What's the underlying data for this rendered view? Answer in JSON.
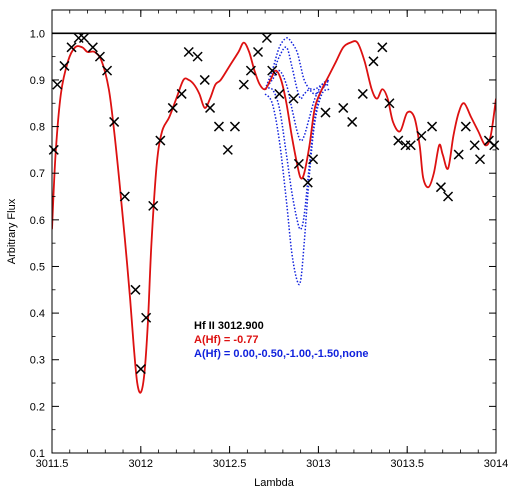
{
  "chart_data": {
    "type": "line",
    "xlabel": "Lambda",
    "ylabel": "Arbitrary Flux",
    "xlim": [
      3011.5,
      3014.0
    ],
    "ylim": [
      0.1,
      1.05
    ],
    "x_ticks": [
      3011.5,
      3012,
      3012.5,
      3013,
      3013.5,
      3014
    ],
    "x_tick_labels": [
      "3011.5",
      "3012",
      "3012.5",
      "3013",
      "3013.5",
      "3014"
    ],
    "y_ticks": [
      0.1,
      0.2,
      0.3,
      0.4,
      0.5,
      0.6,
      0.7,
      0.8,
      0.9,
      1.0
    ],
    "y_tick_labels": [
      "0.1",
      "0.2",
      "0.3",
      "0.4",
      "0.5",
      "0.6",
      "0.7",
      "0.8",
      "0.9",
      "1.0"
    ],
    "continuum_level": 1.0,
    "annotation": {
      "line1": "Hf II 3012.900",
      "line2": "A(Hf) = -0.77",
      "line3": "A(Hf) = 0.00,-0.50,-1.00,-1.50,none"
    },
    "observed": {
      "x": [
        3011.51,
        3011.53,
        3011.57,
        3011.61,
        3011.65,
        3011.68,
        3011.73,
        3011.77,
        3011.81,
        3011.85,
        3011.91,
        3011.97,
        3012.0,
        3012.03,
        3012.07,
        3012.11,
        3012.18,
        3012.23,
        3012.27,
        3012.32,
        3012.36,
        3012.39,
        3012.44,
        3012.49,
        3012.53,
        3012.58,
        3012.62,
        3012.66,
        3012.71,
        3012.74,
        3012.78,
        3012.86,
        3012.89,
        3012.94,
        3012.97,
        3013.04,
        3013.14,
        3013.19,
        3013.25,
        3013.31,
        3013.36,
        3013.4,
        3013.45,
        3013.49,
        3013.52,
        3013.58,
        3013.64,
        3013.69,
        3013.73,
        3013.79,
        3013.83,
        3013.88,
        3013.91,
        3013.96,
        3013.99
      ],
      "y": [
        0.75,
        0.89,
        0.93,
        0.97,
        0.99,
        0.99,
        0.97,
        0.95,
        0.92,
        0.81,
        0.65,
        0.45,
        0.28,
        0.39,
        0.63,
        0.77,
        0.84,
        0.87,
        0.96,
        0.95,
        0.9,
        0.84,
        0.8,
        0.75,
        0.8,
        0.89,
        0.92,
        0.96,
        0.99,
        0.92,
        0.87,
        0.86,
        0.72,
        0.68,
        0.73,
        0.83,
        0.84,
        0.81,
        0.87,
        0.94,
        0.97,
        0.85,
        0.77,
        0.76,
        0.76,
        0.78,
        0.8,
        0.67,
        0.65,
        0.74,
        0.8,
        0.76,
        0.73,
        0.77,
        0.76
      ]
    },
    "series": [
      {
        "name": "A(Hf) = -0.77",
        "color": "#dd1111",
        "style": "solid",
        "x": [
          3011.5,
          3011.52,
          3011.55,
          3011.59,
          3011.63,
          3011.67,
          3011.7,
          3011.74,
          3011.78,
          3011.82,
          3011.85,
          3011.88,
          3011.91,
          3011.94,
          3011.96,
          3011.98,
          3012.0,
          3012.02,
          3012.04,
          3012.06,
          3012.09,
          3012.12,
          3012.16,
          3012.2,
          3012.24,
          3012.27,
          3012.3,
          3012.33,
          3012.36,
          3012.39,
          3012.42,
          3012.45,
          3012.5,
          3012.55,
          3012.58,
          3012.61,
          3012.64,
          3012.67,
          3012.7,
          3012.73,
          3012.76,
          3012.79,
          3012.82,
          3012.85,
          3012.88,
          3012.9,
          3012.92,
          3012.95,
          3012.98,
          3013.02,
          3013.06,
          3013.1,
          3013.14,
          3013.18,
          3013.22,
          3013.26,
          3013.3,
          3013.33,
          3013.36,
          3013.39,
          3013.42,
          3013.46,
          3013.5,
          3013.54,
          3013.57,
          3013.59,
          3013.62,
          3013.65,
          3013.68,
          3013.7,
          3013.73,
          3013.76,
          3013.79,
          3013.82,
          3013.86,
          3013.9,
          3013.94,
          3013.97,
          3014.0
        ],
        "y": [
          0.58,
          0.74,
          0.87,
          0.94,
          0.97,
          0.97,
          0.96,
          0.96,
          0.94,
          0.88,
          0.79,
          0.68,
          0.56,
          0.43,
          0.33,
          0.25,
          0.23,
          0.27,
          0.38,
          0.55,
          0.72,
          0.79,
          0.82,
          0.86,
          0.9,
          0.9,
          0.89,
          0.87,
          0.84,
          0.86,
          0.89,
          0.9,
          0.93,
          0.96,
          0.98,
          0.96,
          0.92,
          0.89,
          0.88,
          0.9,
          0.92,
          0.9,
          0.85,
          0.78,
          0.72,
          0.69,
          0.7,
          0.76,
          0.84,
          0.88,
          0.91,
          0.94,
          0.97,
          0.98,
          0.98,
          0.94,
          0.88,
          0.86,
          0.88,
          0.86,
          0.81,
          0.79,
          0.83,
          0.82,
          0.76,
          0.69,
          0.67,
          0.7,
          0.76,
          0.74,
          0.71,
          0.78,
          0.83,
          0.85,
          0.82,
          0.79,
          0.76,
          0.78,
          0.86
        ]
      },
      {
        "name": "A(Hf) = 0.00",
        "color": "#1122dd",
        "style": "dotted",
        "x": [
          3012.7,
          3012.74,
          3012.78,
          3012.82,
          3012.85,
          3012.88,
          3012.9,
          3012.92,
          3012.95,
          3012.98,
          3013.02,
          3013.06
        ],
        "y": [
          0.87,
          0.85,
          0.77,
          0.64,
          0.53,
          0.47,
          0.47,
          0.55,
          0.7,
          0.81,
          0.87,
          0.88
        ]
      },
      {
        "name": "A(Hf) = -0.50",
        "color": "#1122dd",
        "style": "dotted",
        "x": [
          3012.7,
          3012.74,
          3012.78,
          3012.82,
          3012.85,
          3012.88,
          3012.9,
          3012.92,
          3012.95,
          3012.98,
          3013.02,
          3013.06
        ],
        "y": [
          0.88,
          0.88,
          0.84,
          0.74,
          0.66,
          0.6,
          0.58,
          0.61,
          0.72,
          0.82,
          0.88,
          0.89
        ]
      },
      {
        "name": "A(Hf) = -1.00",
        "color": "#1122dd",
        "style": "dotted",
        "x": [
          3012.7,
          3012.74,
          3012.78,
          3012.82,
          3012.85,
          3012.88,
          3012.9,
          3012.92,
          3012.95,
          3012.98,
          3013.02,
          3013.06
        ],
        "y": [
          0.88,
          0.9,
          0.92,
          0.89,
          0.84,
          0.79,
          0.77,
          0.78,
          0.82,
          0.86,
          0.89,
          0.9
        ]
      },
      {
        "name": "A(Hf) = -1.50",
        "color": "#1122dd",
        "style": "dotted",
        "x": [
          3012.7,
          3012.74,
          3012.78,
          3012.82,
          3012.85,
          3012.88,
          3012.9,
          3012.92,
          3012.95,
          3012.98,
          3013.02,
          3013.06
        ],
        "y": [
          0.88,
          0.91,
          0.95,
          0.97,
          0.93,
          0.88,
          0.86,
          0.87,
          0.88,
          0.88,
          0.89,
          0.9
        ]
      },
      {
        "name": "none",
        "color": "#1122dd",
        "style": "dotted",
        "x": [
          3012.7,
          3012.74,
          3012.78,
          3012.82,
          3012.85,
          3012.88,
          3012.9,
          3012.92,
          3012.95,
          3012.98,
          3013.02,
          3013.06
        ],
        "y": [
          0.88,
          0.92,
          0.97,
          0.99,
          0.98,
          0.96,
          0.93,
          0.9,
          0.88,
          0.87,
          0.88,
          0.9
        ]
      }
    ],
    "colors": {
      "observed": "#000000",
      "best_fit": "#dd1111",
      "trial": "#1122dd",
      "continuum": "#000000"
    }
  }
}
